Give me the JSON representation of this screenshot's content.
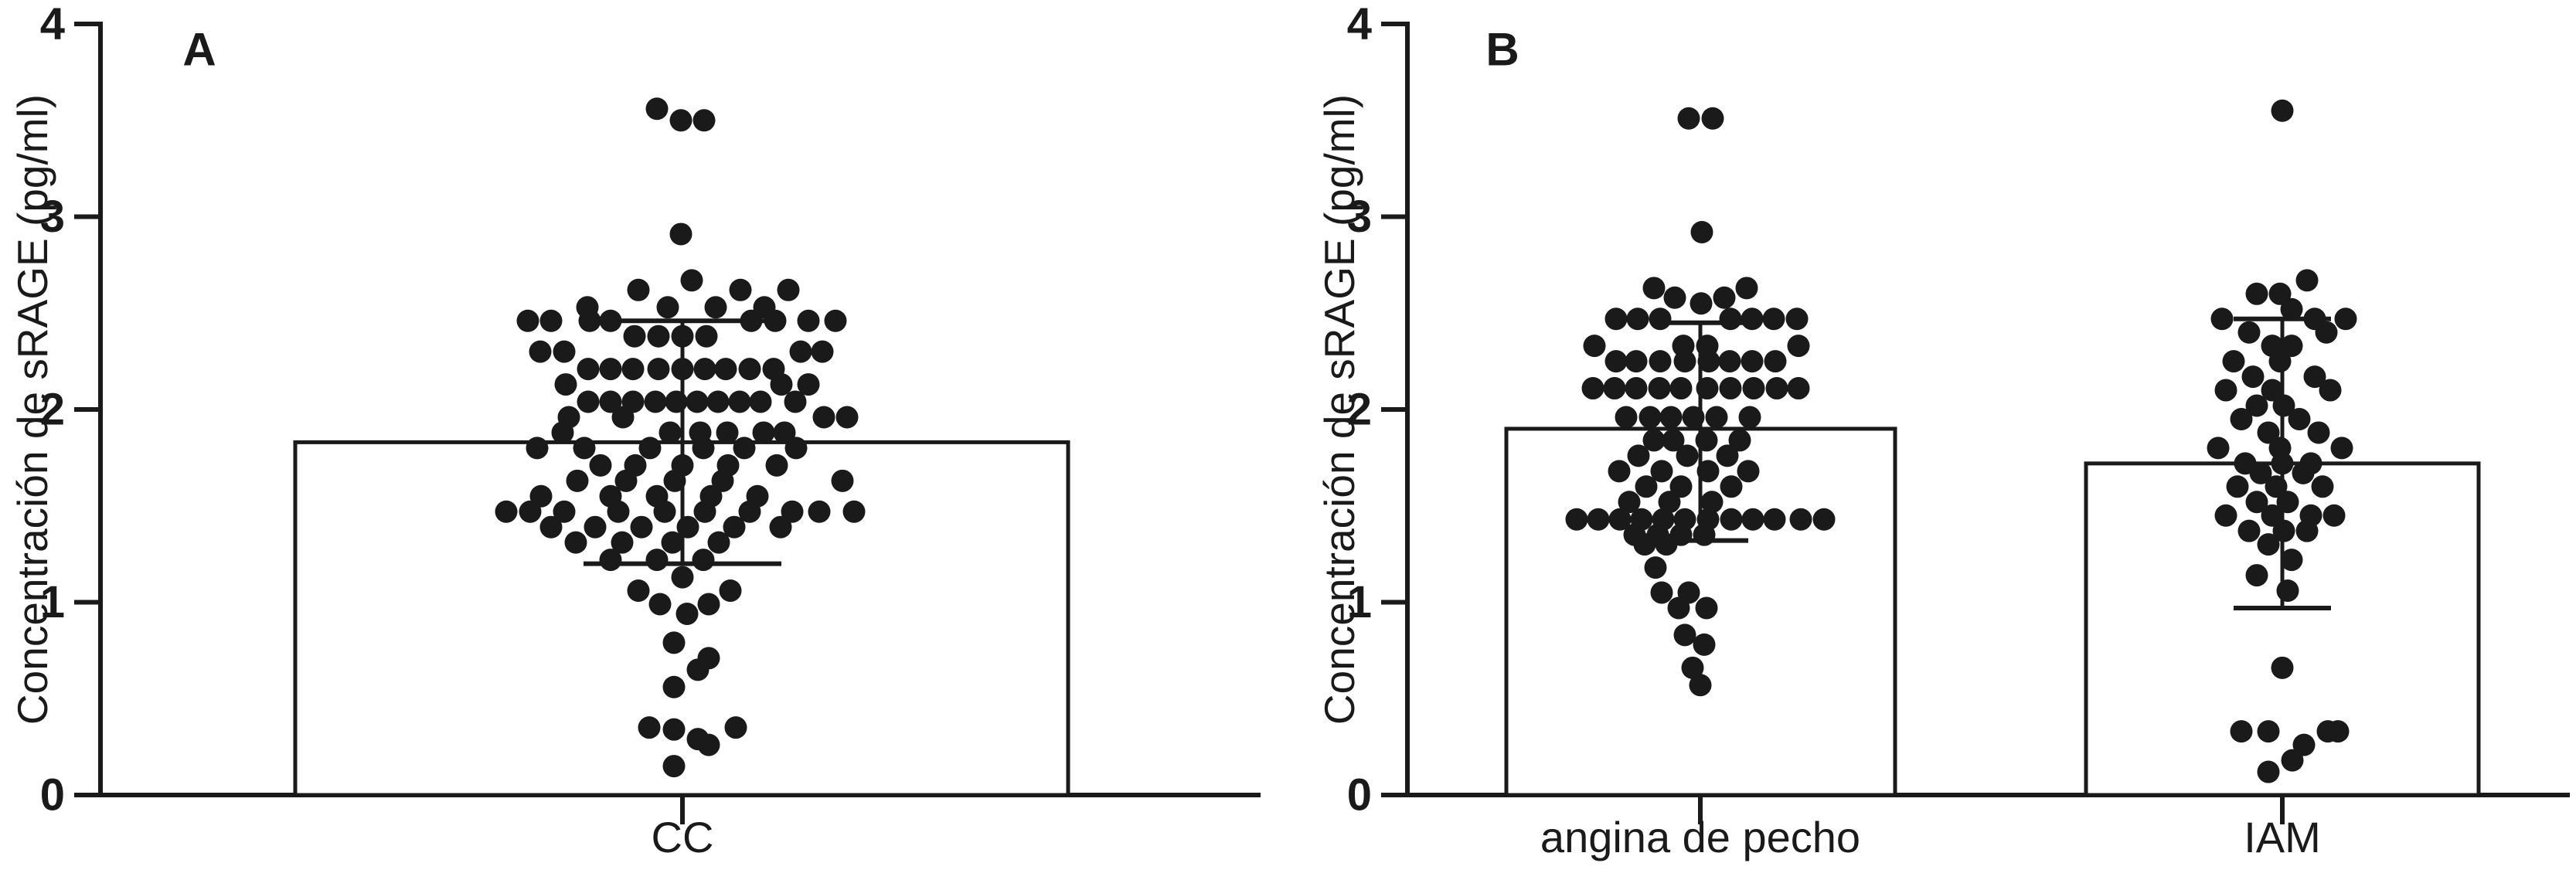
{
  "figure": {
    "background": "#ffffff",
    "ink": "#1a1a1a"
  },
  "chart_data": [
    {
      "type": "bar",
      "panel_label": "A",
      "ylabel": "Concentración de sRAGE (pg/ml)",
      "ylim": [
        0,
        4
      ],
      "yticks": [
        0,
        1,
        2,
        3,
        4
      ],
      "ytick_labels": [
        "0",
        "1",
        "2",
        "3",
        "4"
      ],
      "grid": false,
      "legend": "none",
      "categories": [
        "CC"
      ],
      "bars": [
        {
          "category": "CC",
          "mean": 1.83,
          "err_top": 2.46,
          "err_bottom": 1.2
        }
      ],
      "points": {
        "CC": [
          [
            -33,
            3.56
          ],
          [
            -2,
            3.5
          ],
          [
            28,
            3.5
          ],
          [
            -2,
            2.91
          ],
          [
            12,
            2.67
          ],
          [
            -57,
            2.62
          ],
          [
            75,
            2.62
          ],
          [
            137,
            2.62
          ],
          [
            -123,
            2.53
          ],
          [
            -19,
            2.53
          ],
          [
            43,
            2.53
          ],
          [
            106,
            2.53
          ],
          [
            -200,
            2.46
          ],
          [
            -170,
            2.46
          ],
          [
            -120,
            2.46
          ],
          [
            -93,
            2.46
          ],
          [
            89,
            2.46
          ],
          [
            120,
            2.46
          ],
          [
            163,
            2.46
          ],
          [
            198,
            2.46
          ],
          [
            -62,
            2.38
          ],
          [
            -31,
            2.38
          ],
          [
            0,
            2.38
          ],
          [
            31,
            2.38
          ],
          [
            -184,
            2.3
          ],
          [
            -153,
            2.3
          ],
          [
            153,
            2.3
          ],
          [
            181,
            2.3
          ],
          [
            -122,
            2.21
          ],
          [
            -93,
            2.21
          ],
          [
            -64,
            2.21
          ],
          [
            -31,
            2.21
          ],
          [
            0,
            2.21
          ],
          [
            29,
            2.21
          ],
          [
            56,
            2.21
          ],
          [
            87,
            2.21
          ],
          [
            118,
            2.21
          ],
          [
            -151,
            2.13
          ],
          [
            128,
            2.13
          ],
          [
            163,
            2.13
          ],
          [
            -122,
            2.04
          ],
          [
            -93,
            2.04
          ],
          [
            -64,
            2.04
          ],
          [
            -35,
            2.04
          ],
          [
            -8,
            2.04
          ],
          [
            19,
            2.04
          ],
          [
            46,
            2.04
          ],
          [
            74,
            2.04
          ],
          [
            101,
            2.04
          ],
          [
            146,
            2.04
          ],
          [
            -147,
            1.96
          ],
          [
            -77,
            1.96
          ],
          [
            183,
            1.96
          ],
          [
            213,
            1.96
          ],
          [
            -155,
            1.88
          ],
          [
            -16,
            1.88
          ],
          [
            23,
            1.88
          ],
          [
            58,
            1.88
          ],
          [
            105,
            1.88
          ],
          [
            132,
            1.88
          ],
          [
            -188,
            1.8
          ],
          [
            -127,
            1.8
          ],
          [
            -42,
            1.8
          ],
          [
            27,
            1.8
          ],
          [
            80,
            1.8
          ],
          [
            147,
            1.8
          ],
          [
            -106,
            1.71
          ],
          [
            -61,
            1.71
          ],
          [
            0,
            1.71
          ],
          [
            59,
            1.71
          ],
          [
            122,
            1.71
          ],
          [
            -136,
            1.63
          ],
          [
            -73,
            1.63
          ],
          [
            -10,
            1.63
          ],
          [
            52,
            1.63
          ],
          [
            207,
            1.63
          ],
          [
            -183,
            1.55
          ],
          [
            -93,
            1.55
          ],
          [
            -33,
            1.55
          ],
          [
            37,
            1.55
          ],
          [
            97,
            1.55
          ],
          [
            -228,
            1.47
          ],
          [
            -197,
            1.47
          ],
          [
            -153,
            1.47
          ],
          [
            -83,
            1.47
          ],
          [
            -23,
            1.47
          ],
          [
            29,
            1.47
          ],
          [
            87,
            1.47
          ],
          [
            142,
            1.47
          ],
          [
            177,
            1.47
          ],
          [
            222,
            1.47
          ],
          [
            -170,
            1.39
          ],
          [
            -113,
            1.39
          ],
          [
            -53,
            1.39
          ],
          [
            7,
            1.39
          ],
          [
            67,
            1.39
          ],
          [
            127,
            1.39
          ],
          [
            -138,
            1.31
          ],
          [
            -78,
            1.31
          ],
          [
            -13,
            1.31
          ],
          [
            47,
            1.31
          ],
          [
            -93,
            1.22
          ],
          [
            -33,
            1.22
          ],
          [
            27,
            1.22
          ],
          [
            0,
            1.13
          ],
          [
            -57,
            1.06
          ],
          [
            62,
            1.06
          ],
          [
            -29,
            0.99
          ],
          [
            34,
            0.99
          ],
          [
            6,
            0.94
          ],
          [
            -11,
            0.79
          ],
          [
            34,
            0.71
          ],
          [
            20,
            0.65
          ],
          [
            -11,
            0.56
          ],
          [
            -43,
            0.35
          ],
          [
            69,
            0.35
          ],
          [
            -11,
            0.34
          ],
          [
            20,
            0.29
          ],
          [
            34,
            0.26
          ],
          [
            -11,
            0.15
          ]
        ]
      }
    },
    {
      "type": "bar",
      "panel_label": "B",
      "ylabel": "Concentración de sRAGE (pg/ml)",
      "ylim": [
        0,
        4
      ],
      "yticks": [
        0,
        1,
        2,
        3,
        4
      ],
      "ytick_labels": [
        "0",
        "1",
        "2",
        "3",
        "4"
      ],
      "grid": false,
      "legend": "none",
      "categories": [
        "angina de pecho",
        "IAM"
      ],
      "bars": [
        {
          "category": "angina de pecho",
          "mean": 1.9,
          "err_top": 2.45,
          "err_bottom": 1.32
        },
        {
          "category": "IAM",
          "mean": 1.72,
          "err_top": 2.47,
          "err_bottom": 0.97
        }
      ],
      "points": {
        "angina de pecho": [
          [
            -15,
            3.51
          ],
          [
            16,
            3.51
          ],
          [
            2,
            2.92
          ],
          [
            -60,
            2.63
          ],
          [
            60,
            2.63
          ],
          [
            -33,
            2.58
          ],
          [
            31,
            2.58
          ],
          [
            1,
            2.55
          ],
          [
            -109,
            2.47
          ],
          [
            -81,
            2.47
          ],
          [
            -52,
            2.47
          ],
          [
            39,
            2.47
          ],
          [
            67,
            2.47
          ],
          [
            95,
            2.47
          ],
          [
            125,
            2.47
          ],
          [
            -137,
            2.33
          ],
          [
            -22,
            2.33
          ],
          [
            9,
            2.33
          ],
          [
            127,
            2.33
          ],
          [
            -109,
            2.25
          ],
          [
            -83,
            2.25
          ],
          [
            -52,
            2.25
          ],
          [
            -20,
            2.25
          ],
          [
            11,
            2.25
          ],
          [
            38,
            2.25
          ],
          [
            67,
            2.25
          ],
          [
            97,
            2.25
          ],
          [
            -139,
            2.11
          ],
          [
            -111,
            2.11
          ],
          [
            -83,
            2.11
          ],
          [
            -53,
            2.11
          ],
          [
            -25,
            2.11
          ],
          [
            9,
            2.11
          ],
          [
            39,
            2.11
          ],
          [
            69,
            2.11
          ],
          [
            99,
            2.11
          ],
          [
            127,
            2.11
          ],
          [
            -96,
            1.96
          ],
          [
            -65,
            1.96
          ],
          [
            -38,
            1.96
          ],
          [
            -9,
            1.96
          ],
          [
            21,
            1.96
          ],
          [
            64,
            1.96
          ],
          [
            -60,
            1.84
          ],
          [
            -35,
            1.84
          ],
          [
            8,
            1.84
          ],
          [
            51,
            1.84
          ],
          [
            -80,
            1.76
          ],
          [
            -17,
            1.76
          ],
          [
            35,
            1.76
          ],
          [
            -105,
            1.68
          ],
          [
            -50,
            1.68
          ],
          [
            10,
            1.68
          ],
          [
            62,
            1.68
          ],
          [
            -70,
            1.6
          ],
          [
            -25,
            1.6
          ],
          [
            40,
            1.6
          ],
          [
            -92,
            1.52
          ],
          [
            -40,
            1.52
          ],
          [
            15,
            1.52
          ],
          [
            -160,
            1.43
          ],
          [
            -132,
            1.43
          ],
          [
            -104,
            1.43
          ],
          [
            -76,
            1.43
          ],
          [
            -48,
            1.43
          ],
          [
            -20,
            1.43
          ],
          [
            10,
            1.43
          ],
          [
            40,
            1.43
          ],
          [
            68,
            1.43
          ],
          [
            96,
            1.43
          ],
          [
            130,
            1.43
          ],
          [
            160,
            1.43
          ],
          [
            -85,
            1.35
          ],
          [
            -55,
            1.35
          ],
          [
            -25,
            1.35
          ],
          [
            5,
            1.35
          ],
          [
            -72,
            1.3
          ],
          [
            -44,
            1.3
          ],
          [
            -58,
            1.18
          ],
          [
            -50,
            1.05
          ],
          [
            -15,
            1.05
          ],
          [
            -28,
            0.97
          ],
          [
            8,
            0.97
          ],
          [
            -20,
            0.83
          ],
          [
            5,
            0.78
          ],
          [
            -10,
            0.66
          ],
          [
            0,
            0.57
          ]
        ],
        "IAM": [
          [
            0,
            3.55
          ],
          [
            32,
            2.67
          ],
          [
            -33,
            2.6
          ],
          [
            -3,
            2.6
          ],
          [
            12,
            2.52
          ],
          [
            -78,
            2.47
          ],
          [
            42,
            2.47
          ],
          [
            82,
            2.47
          ],
          [
            -43,
            2.4
          ],
          [
            57,
            2.4
          ],
          [
            -13,
            2.33
          ],
          [
            12,
            2.33
          ],
          [
            -63,
            2.25
          ],
          [
            -3,
            2.25
          ],
          [
            -38,
            2.17
          ],
          [
            42,
            2.17
          ],
          [
            -73,
            2.1
          ],
          [
            -13,
            2.1
          ],
          [
            62,
            2.1
          ],
          [
            -33,
            2.02
          ],
          [
            2,
            2.02
          ],
          [
            -53,
            1.95
          ],
          [
            22,
            1.95
          ],
          [
            -18,
            1.88
          ],
          [
            47,
            1.88
          ],
          [
            -83,
            1.8
          ],
          [
            -3,
            1.8
          ],
          [
            77,
            1.8
          ],
          [
            -48,
            1.72
          ],
          [
            0,
            1.72
          ],
          [
            37,
            1.72
          ],
          [
            -28,
            1.67
          ],
          [
            27,
            1.67
          ],
          [
            -58,
            1.6
          ],
          [
            -8,
            1.6
          ],
          [
            52,
            1.6
          ],
          [
            -33,
            1.52
          ],
          [
            7,
            1.52
          ],
          [
            -73,
            1.45
          ],
          [
            -13,
            1.45
          ],
          [
            37,
            1.45
          ],
          [
            67,
            1.45
          ],
          [
            -43,
            1.37
          ],
          [
            2,
            1.37
          ],
          [
            32,
            1.37
          ],
          [
            -18,
            1.3
          ],
          [
            12,
            1.22
          ],
          [
            -33,
            1.14
          ],
          [
            7,
            1.06
          ],
          [
            0,
            0.66
          ],
          [
            -53,
            0.33
          ],
          [
            -18,
            0.33
          ],
          [
            59,
            0.33
          ],
          [
            72,
            0.33
          ],
          [
            28,
            0.26
          ],
          [
            13,
            0.18
          ],
          [
            -18,
            0.12
          ]
        ]
      }
    }
  ]
}
